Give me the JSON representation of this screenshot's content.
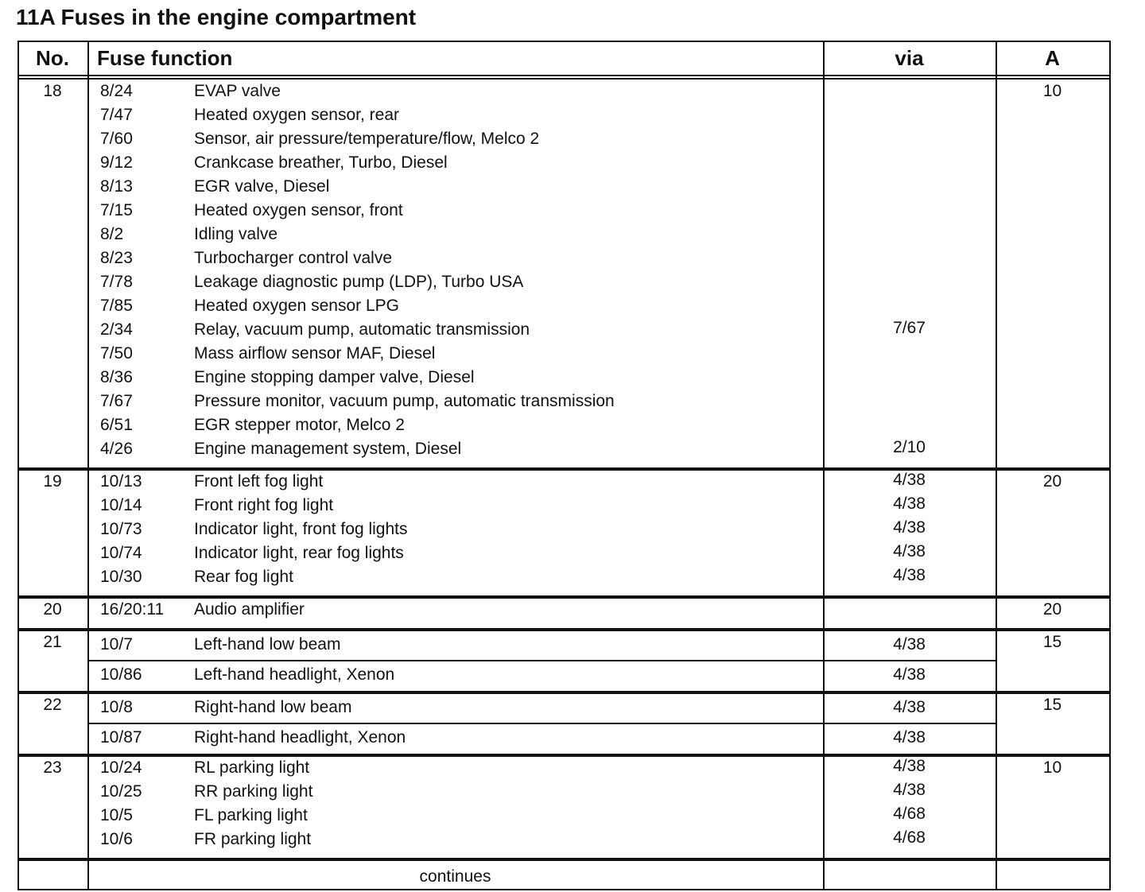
{
  "title": "11A Fuses in the engine compartment",
  "headers": {
    "no": "No.",
    "function": "Fuse function",
    "via": "via",
    "amps": "A"
  },
  "groups": [
    {
      "no": "18",
      "amps": "10",
      "split": false,
      "entries": [
        {
          "code": "8/24",
          "desc": "EVAP valve",
          "via": ""
        },
        {
          "code": "7/47",
          "desc": "Heated oxygen sensor, rear",
          "via": ""
        },
        {
          "code": "7/60",
          "desc": "Sensor, air pressure/temperature/flow, Melco 2",
          "via": ""
        },
        {
          "code": "9/12",
          "desc": "Crankcase breather, Turbo, Diesel",
          "via": ""
        },
        {
          "code": "8/13",
          "desc": "EGR valve, Diesel",
          "via": ""
        },
        {
          "code": "7/15",
          "desc": "Heated oxygen sensor, front",
          "via": ""
        },
        {
          "code": "8/2",
          "desc": "Idling valve",
          "via": ""
        },
        {
          "code": "8/23",
          "desc": "Turbocharger control valve",
          "via": ""
        },
        {
          "code": "7/78",
          "desc": "Leakage diagnostic pump (LDP), Turbo USA",
          "via": ""
        },
        {
          "code": "7/85",
          "desc": "Heated oxygen sensor LPG",
          "via": ""
        },
        {
          "code": "2/34",
          "desc": "Relay, vacuum pump, automatic transmission",
          "via": "7/67"
        },
        {
          "code": "7/50",
          "desc": "Mass airflow sensor MAF, Diesel",
          "via": ""
        },
        {
          "code": "8/36",
          "desc": "Engine stopping damper valve, Diesel",
          "via": ""
        },
        {
          "code": "7/67",
          "desc": "Pressure monitor, vacuum pump, automatic transmission",
          "via": ""
        },
        {
          "code": "6/51",
          "desc": "EGR stepper motor, Melco 2",
          "via": ""
        },
        {
          "code": "4/26",
          "desc": "Engine management system, Diesel",
          "via": "2/10"
        }
      ]
    },
    {
      "no": "19",
      "amps": "20",
      "split": false,
      "entries": [
        {
          "code": "10/13",
          "desc": "Front left fog light",
          "via": "4/38"
        },
        {
          "code": "10/14",
          "desc": "Front right fog light",
          "via": "4/38"
        },
        {
          "code": "10/73",
          "desc": "Indicator light, front fog lights",
          "via": "4/38"
        },
        {
          "code": "10/74",
          "desc": "Indicator light, rear fog lights",
          "via": "4/38"
        },
        {
          "code": "10/30",
          "desc": "Rear fog light",
          "via": "4/38"
        }
      ]
    },
    {
      "no": "20",
      "amps": "20",
      "split": false,
      "entries": [
        {
          "code": "16/20:11",
          "desc": "Audio amplifier",
          "via": ""
        }
      ]
    },
    {
      "no": "21",
      "amps": "15",
      "split": true,
      "entries": [
        {
          "code": "10/7",
          "desc": "Left-hand low beam",
          "via": "4/38"
        },
        {
          "code": "10/86",
          "desc": "Left-hand headlight, Xenon",
          "via": "4/38"
        }
      ]
    },
    {
      "no": "22",
      "amps": "15",
      "split": true,
      "entries": [
        {
          "code": "10/8",
          "desc": "Right-hand low beam",
          "via": "4/38"
        },
        {
          "code": "10/87",
          "desc": "Right-hand headlight, Xenon",
          "via": "4/38"
        }
      ]
    },
    {
      "no": "23",
      "amps": "10",
      "split": false,
      "entries": [
        {
          "code": "10/24",
          "desc": "RL parking light",
          "via": "4/38"
        },
        {
          "code": "10/25",
          "desc": "RR parking light",
          "via": "4/38"
        },
        {
          "code": "10/5",
          "desc": "FL parking light",
          "via": "4/68"
        },
        {
          "code": "10/6",
          "desc": "FR parking light",
          "via": "4/68"
        }
      ]
    }
  ],
  "footer": "continues"
}
